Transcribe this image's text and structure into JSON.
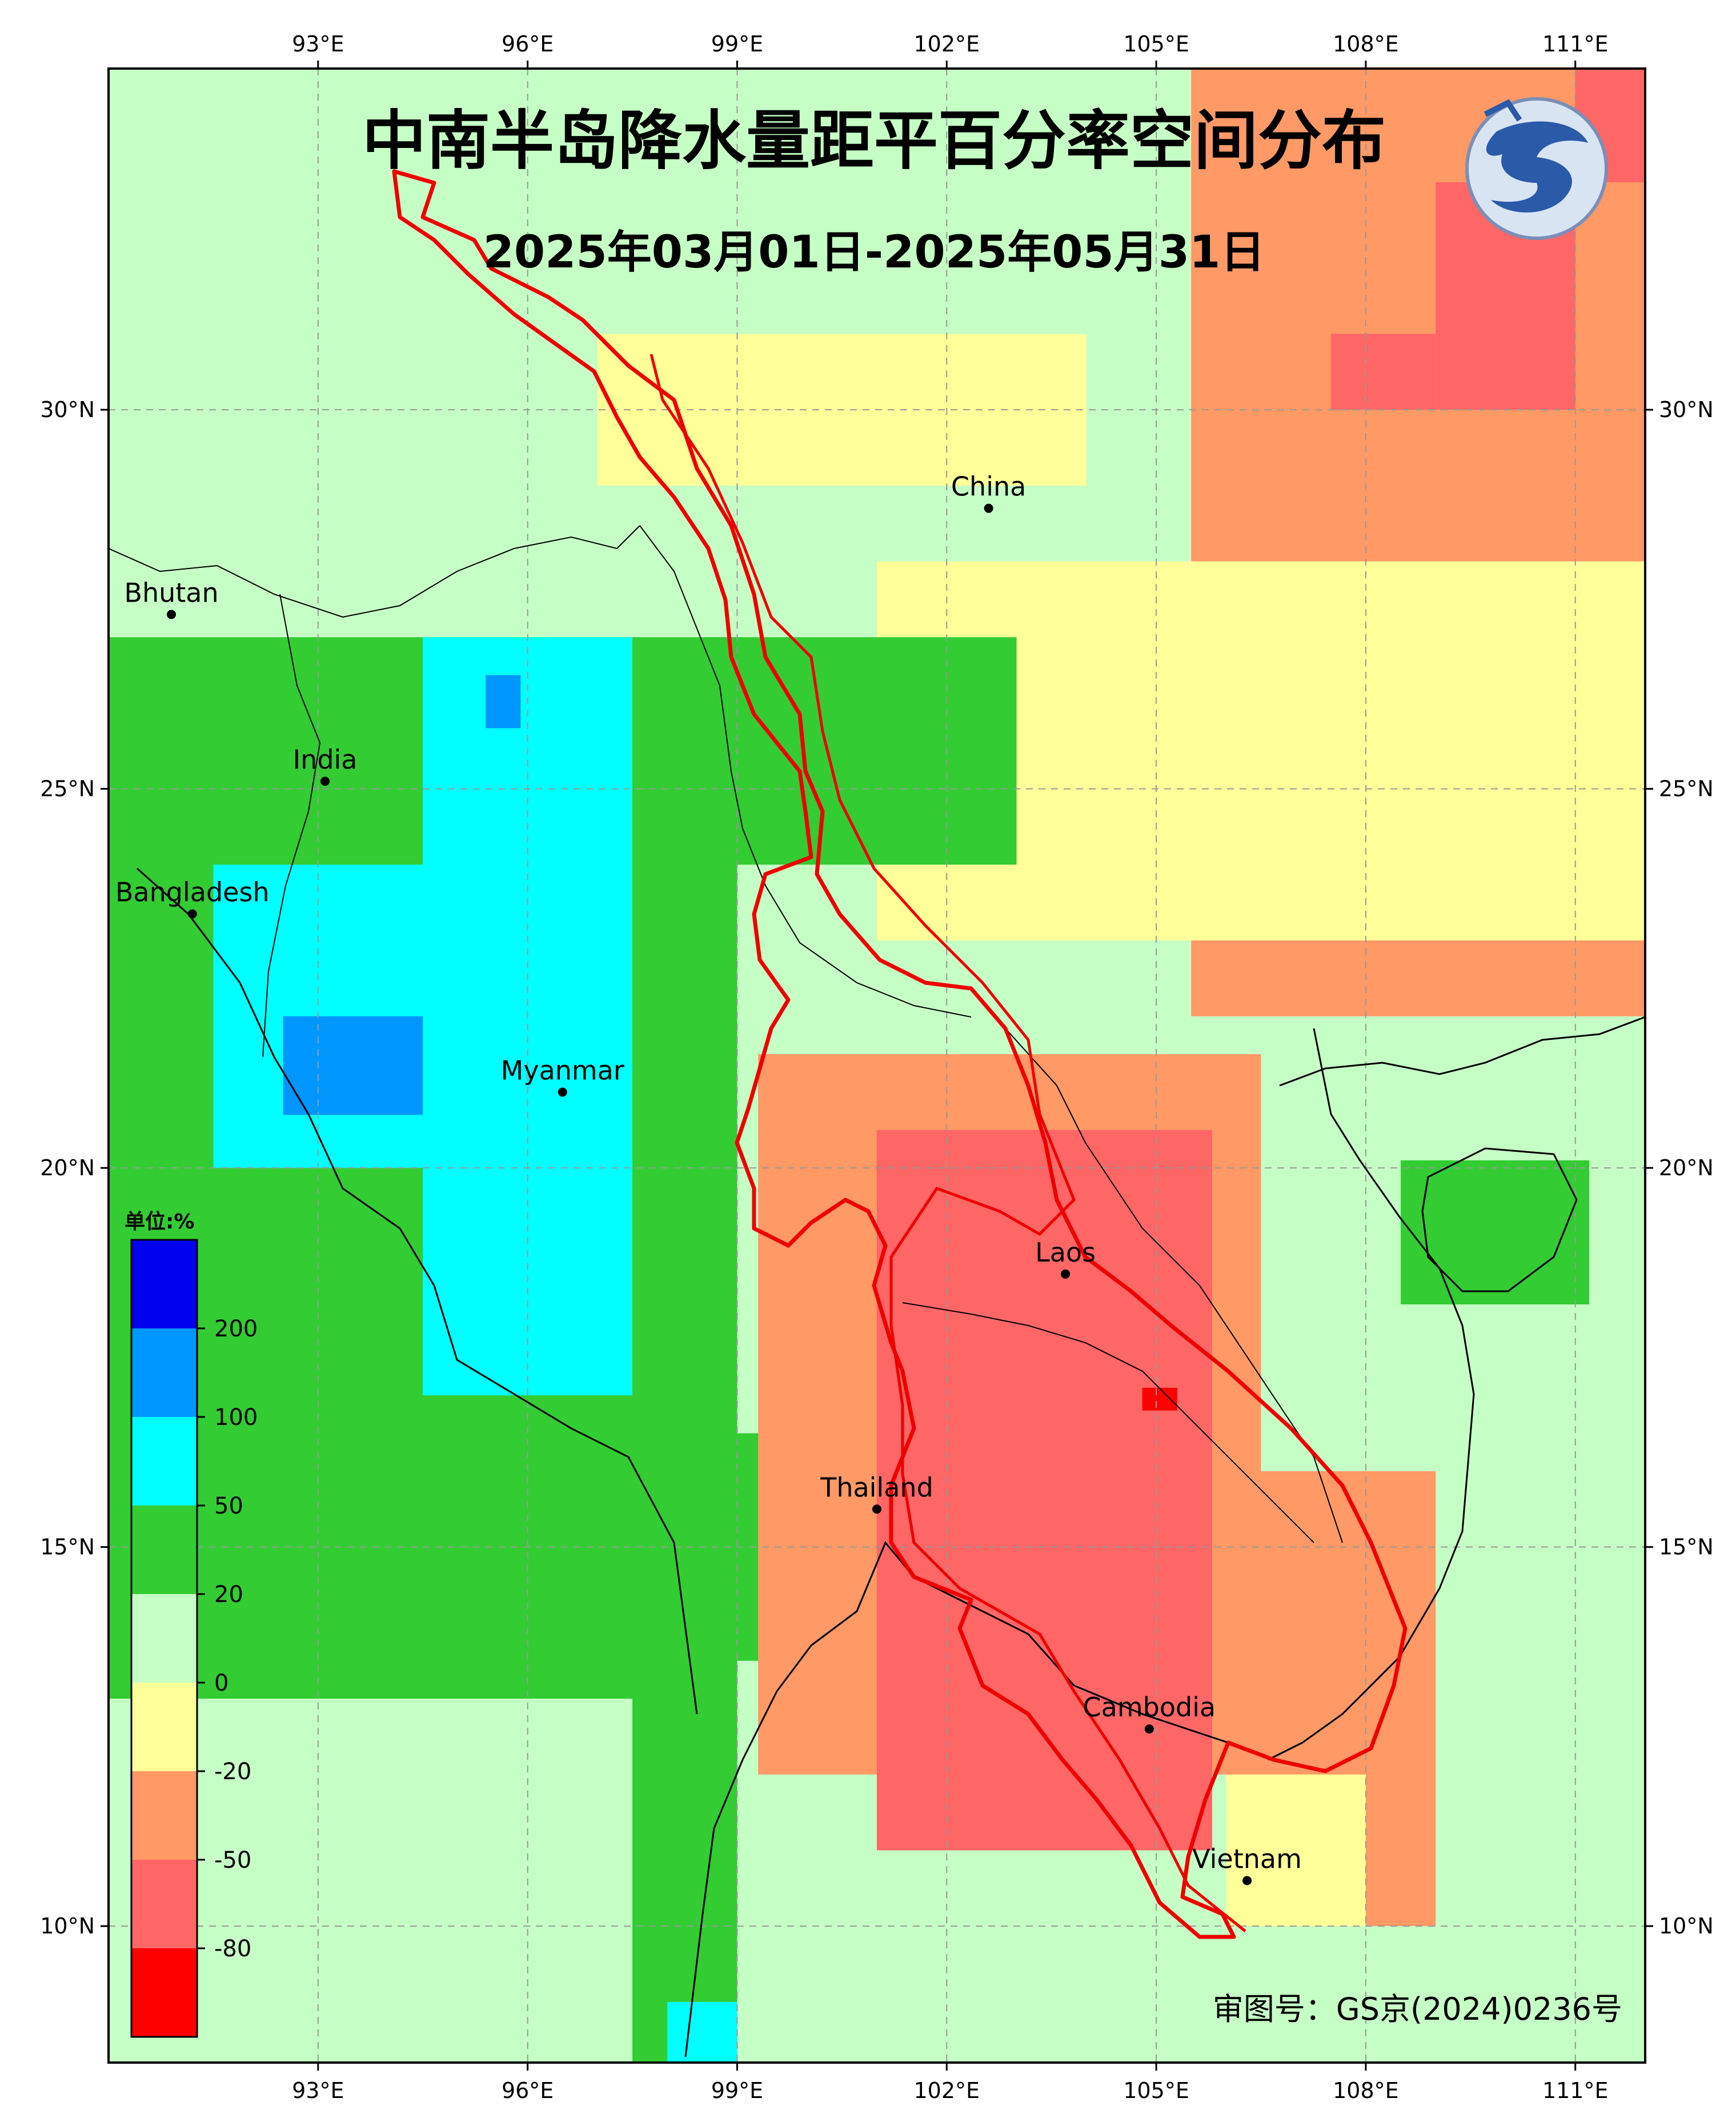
{
  "title": "中南半岛降水量距平百分率空间分布",
  "subtitle": "2025年03月01日-2025年05月31日",
  "approval_number": "审图号：GS京(2024)0236号",
  "logo": {
    "icon": "cma-dragon-logo"
  },
  "axes": {
    "lon_ticks": [
      "93°E",
      "96°E",
      "99°E",
      "102°E",
      "105°E",
      "108°E",
      "111°E"
    ],
    "lat_ticks": [
      "30°N",
      "25°N",
      "20°N",
      "15°N",
      "10°N"
    ],
    "lon_values": [
      93,
      96,
      99,
      102,
      105,
      108,
      111
    ],
    "lat_values": [
      30,
      25,
      20,
      15,
      10
    ],
    "lon_range": [
      90,
      112
    ],
    "lat_range": [
      8.2,
      34.5
    ],
    "grid": true
  },
  "legend": {
    "unit": "单位:%",
    "labels": [
      "200",
      "100",
      "50",
      "20",
      "0",
      "-20",
      "-50",
      "-80"
    ],
    "colors": [
      "#0000EE",
      "#0096FF",
      "#00FFFF",
      "#33CC33",
      "#C6FFC6",
      "#FFFF99",
      "#FF9966",
      "#FF6666",
      "#FF0000"
    ]
  },
  "places": [
    {
      "name": "China",
      "lon": 102.6,
      "lat": 28.7
    },
    {
      "name": "Bhutan",
      "lon": 90.9,
      "lat": 27.3
    },
    {
      "name": "India",
      "lon": 93.1,
      "lat": 25.1
    },
    {
      "name": "Bangladesh",
      "lon": 91.2,
      "lat": 23.35
    },
    {
      "name": "Myanmar",
      "lon": 96.5,
      "lat": 21.0
    },
    {
      "name": "Laos",
      "lon": 103.7,
      "lat": 18.6
    },
    {
      "name": "Thailand",
      "lon": 101.0,
      "lat": 15.5
    },
    {
      "name": "Cambodia",
      "lon": 104.9,
      "lat": 12.6
    },
    {
      "name": "Vietnam",
      "lon": 106.3,
      "lat": 10.6
    }
  ],
  "chart_data": {
    "type": "heatmap",
    "variable": "降水量距平百分率",
    "bins": [
      "<-80",
      "-80~-50",
      "-50~-20",
      "-20~0",
      "0~20",
      "20~50",
      "50~100",
      "100~200",
      ">200"
    ],
    "regions": [
      {
        "lon": [
          90,
          112
        ],
        "lat": [
          8.2,
          34.5
        ],
        "bin": 4
      },
      {
        "lon": [
          105.5,
          112
        ],
        "lat": [
          22,
          34.5
        ],
        "bin": 2
      },
      {
        "lon": [
          101,
          112
        ],
        "lat": [
          23,
          28
        ],
        "bin": 3
      },
      {
        "lon": [
          97,
          104
        ],
        "lat": [
          29,
          31
        ],
        "bin": 3
      },
      {
        "lon": [
          90,
          99
        ],
        "lat": [
          13,
          27
        ],
        "bin": 5
      },
      {
        "lon": [
          98.5,
          103
        ],
        "lat": [
          24,
          27
        ],
        "bin": 5
      },
      {
        "lon": [
          94.5,
          97.5
        ],
        "lat": [
          17,
          27
        ],
        "bin": 6
      },
      {
        "lon": [
          91.5,
          95.5
        ],
        "lat": [
          20,
          24
        ],
        "bin": 6
      },
      {
        "lon": [
          92.5,
          94.5
        ],
        "lat": [
          20.7,
          22
        ],
        "bin": 7
      },
      {
        "lon": [
          95.4,
          95.9
        ],
        "lat": [
          25.8,
          26.5
        ],
        "bin": 7
      },
      {
        "lon": [
          98.5,
          102
        ],
        "lat": [
          13.5,
          16.5
        ],
        "bin": 5
      },
      {
        "lon": [
          99.5,
          101
        ],
        "lat": [
          14,
          15.5
        ],
        "bin": 6
      },
      {
        "lon": [
          101.2,
          102.2
        ],
        "lat": [
          15.2,
          15.6
        ],
        "bin": 7
      },
      {
        "lon": [
          99.3,
          106.5
        ],
        "lat": [
          12,
          21.5
        ],
        "bin": 2
      },
      {
        "lon": [
          101,
          105.8
        ],
        "lat": [
          11,
          20.5
        ],
        "bin": 1
      },
      {
        "lon": [
          104.8,
          105.3
        ],
        "lat": [
          16.8,
          17.1
        ],
        "bin": 0
      },
      {
        "lon": [
          106,
          109
        ],
        "lat": [
          10,
          16
        ],
        "bin": 2
      },
      {
        "lon": [
          106,
          108
        ],
        "lat": [
          10,
          12
        ],
        "bin": 3
      },
      {
        "lon": [
          108.5,
          111.2
        ],
        "lat": [
          18.2,
          20.1
        ],
        "bin": 5
      },
      {
        "lon": [
          97.5,
          99
        ],
        "lat": [
          8.2,
          13
        ],
        "bin": 5
      },
      {
        "lon": [
          98,
          99
        ],
        "lat": [
          8.2,
          9
        ],
        "bin": 6
      },
      {
        "lon": [
          109,
          111
        ],
        "lat": [
          30,
          33
        ],
        "bin": 1
      },
      {
        "lon": [
          107.5,
          109
        ],
        "lat": [
          30,
          31
        ],
        "bin": 1
      },
      {
        "lon": [
          111,
          112
        ],
        "lat": [
          33,
          34.5
        ],
        "bin": 1
      }
    ]
  }
}
